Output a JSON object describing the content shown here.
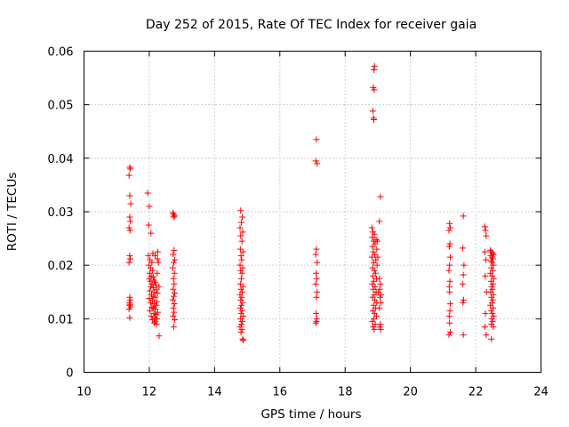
{
  "chart_data": {
    "type": "scatter",
    "title": "Day 252 of 2015, Rate Of TEC Index for receiver gaia",
    "xlabel": "GPS time / hours",
    "ylabel": "ROTI / TECUs",
    "xlim": [
      10,
      24
    ],
    "ylim": [
      0,
      0.06
    ],
    "xticks": [
      10,
      12,
      14,
      16,
      18,
      20,
      22,
      24
    ],
    "yticks": [
      0,
      0.01,
      0.02,
      0.03,
      0.04,
      0.05,
      0.06
    ],
    "xtick_labels": [
      "10",
      "12",
      "14",
      "16",
      "18",
      "20",
      "22",
      "24"
    ],
    "ytick_labels": [
      "0",
      "0.01",
      "0.02",
      "0.03",
      "0.04",
      "0.05",
      "0.06"
    ],
    "grid": true,
    "marker": "plus",
    "color": "#ff0000",
    "series": [
      {
        "name": "ROTI",
        "points": [
          [
            11.4,
            0.0383
          ],
          [
            11.42,
            0.038
          ],
          [
            11.38,
            0.0368
          ],
          [
            11.4,
            0.033
          ],
          [
            11.43,
            0.0315
          ],
          [
            11.4,
            0.029
          ],
          [
            11.42,
            0.0282
          ],
          [
            11.38,
            0.027
          ],
          [
            11.41,
            0.0265
          ],
          [
            11.4,
            0.0218
          ],
          [
            11.42,
            0.0212
          ],
          [
            11.38,
            0.0205
          ],
          [
            11.4,
            0.014
          ],
          [
            11.42,
            0.0135
          ],
          [
            11.39,
            0.013
          ],
          [
            11.41,
            0.0127
          ],
          [
            11.4,
            0.0125
          ],
          [
            11.43,
            0.0122
          ],
          [
            11.38,
            0.0118
          ],
          [
            11.4,
            0.0102
          ],
          [
            11.95,
            0.0335
          ],
          [
            12.0,
            0.031
          ],
          [
            11.98,
            0.0275
          ],
          [
            12.05,
            0.026
          ],
          [
            11.97,
            0.0218
          ],
          [
            12.02,
            0.021
          ],
          [
            12.08,
            0.0205
          ],
          [
            11.99,
            0.02
          ],
          [
            12.04,
            0.0195
          ],
          [
            12.1,
            0.019
          ],
          [
            12.01,
            0.0185
          ],
          [
            12.06,
            0.018
          ],
          [
            12.12,
            0.0178
          ],
          [
            12.0,
            0.0175
          ],
          [
            12.15,
            0.0172
          ],
          [
            12.03,
            0.017
          ],
          [
            12.18,
            0.0168
          ],
          [
            12.08,
            0.0165
          ],
          [
            12.2,
            0.0163
          ],
          [
            12.05,
            0.016
          ],
          [
            12.12,
            0.0158
          ],
          [
            12.22,
            0.0155
          ],
          [
            12.02,
            0.0152
          ],
          [
            12.16,
            0.015
          ],
          [
            12.25,
            0.0148
          ],
          [
            12.07,
            0.0145
          ],
          [
            12.13,
            0.0142
          ],
          [
            12.19,
            0.014
          ],
          [
            12.0,
            0.0138
          ],
          [
            12.1,
            0.0135
          ],
          [
            12.24,
            0.0132
          ],
          [
            12.04,
            0.013
          ],
          [
            12.15,
            0.0128
          ],
          [
            12.21,
            0.0125
          ],
          [
            12.08,
            0.0122
          ],
          [
            12.12,
            0.012
          ],
          [
            12.18,
            0.0118
          ],
          [
            12.02,
            0.0115
          ],
          [
            12.26,
            0.0112
          ],
          [
            12.14,
            0.011
          ],
          [
            12.2,
            0.0108
          ],
          [
            12.06,
            0.0105
          ],
          [
            12.17,
            0.0102
          ],
          [
            12.23,
            0.01
          ],
          [
            12.1,
            0.0098
          ],
          [
            12.19,
            0.0095
          ],
          [
            12.15,
            0.0092
          ],
          [
            12.22,
            0.009
          ],
          [
            12.25,
            0.0212
          ],
          [
            12.28,
            0.0205
          ],
          [
            12.26,
            0.0225
          ],
          [
            12.3,
            0.016
          ],
          [
            12.3,
            0.0068
          ],
          [
            12.18,
            0.0218
          ],
          [
            12.11,
            0.0222
          ],
          [
            12.24,
            0.0185
          ],
          [
            12.72,
            0.0298
          ],
          [
            12.75,
            0.0295
          ],
          [
            12.78,
            0.0292
          ],
          [
            12.74,
            0.029
          ],
          [
            12.76,
            0.0228
          ],
          [
            12.73,
            0.022
          ],
          [
            12.78,
            0.021
          ],
          [
            12.75,
            0.0205
          ],
          [
            12.72,
            0.0195
          ],
          [
            12.77,
            0.0185
          ],
          [
            12.74,
            0.0175
          ],
          [
            12.76,
            0.0165
          ],
          [
            12.73,
            0.0155
          ],
          [
            12.78,
            0.0148
          ],
          [
            12.75,
            0.0142
          ],
          [
            12.72,
            0.0135
          ],
          [
            12.77,
            0.0128
          ],
          [
            12.74,
            0.012
          ],
          [
            12.76,
            0.0112
          ],
          [
            12.73,
            0.0105
          ],
          [
            12.78,
            0.0098
          ],
          [
            12.75,
            0.0085
          ],
          [
            14.8,
            0.0302
          ],
          [
            14.85,
            0.029
          ],
          [
            14.82,
            0.028
          ],
          [
            14.78,
            0.027
          ],
          [
            14.86,
            0.0262
          ],
          [
            14.8,
            0.0255
          ],
          [
            14.84,
            0.0245
          ],
          [
            14.79,
            0.023
          ],
          [
            14.87,
            0.0225
          ],
          [
            14.81,
            0.0218
          ],
          [
            14.83,
            0.021
          ],
          [
            14.78,
            0.02
          ],
          [
            14.86,
            0.0195
          ],
          [
            14.8,
            0.019
          ],
          [
            14.84,
            0.0185
          ],
          [
            14.82,
            0.0175
          ],
          [
            14.79,
            0.0165
          ],
          [
            14.87,
            0.016
          ],
          [
            14.81,
            0.0155
          ],
          [
            14.85,
            0.015
          ],
          [
            14.78,
            0.0145
          ],
          [
            14.83,
            0.014
          ],
          [
            14.8,
            0.0135
          ],
          [
            14.86,
            0.013
          ],
          [
            14.82,
            0.0125
          ],
          [
            14.79,
            0.012
          ],
          [
            14.84,
            0.0115
          ],
          [
            14.81,
            0.011
          ],
          [
            14.87,
            0.0105
          ],
          [
            14.8,
            0.01
          ],
          [
            14.85,
            0.0095
          ],
          [
            14.82,
            0.009
          ],
          [
            14.78,
            0.0085
          ],
          [
            14.84,
            0.008
          ],
          [
            14.81,
            0.0075
          ],
          [
            14.86,
            0.0062
          ],
          [
            14.88,
            0.006
          ],
          [
            17.12,
            0.0435
          ],
          [
            17.1,
            0.0395
          ],
          [
            17.14,
            0.039
          ],
          [
            17.12,
            0.023
          ],
          [
            17.1,
            0.022
          ],
          [
            17.14,
            0.0205
          ],
          [
            17.11,
            0.0185
          ],
          [
            17.13,
            0.0175
          ],
          [
            17.1,
            0.0165
          ],
          [
            17.14,
            0.015
          ],
          [
            17.12,
            0.014
          ],
          [
            17.11,
            0.011
          ],
          [
            17.13,
            0.01
          ],
          [
            17.12,
            0.0095
          ],
          [
            17.1,
            0.0092
          ],
          [
            18.9,
            0.0572
          ],
          [
            18.88,
            0.0565
          ],
          [
            18.86,
            0.0532
          ],
          [
            18.89,
            0.0528
          ],
          [
            18.85,
            0.0488
          ],
          [
            18.87,
            0.0475
          ],
          [
            18.88,
            0.0472
          ],
          [
            19.08,
            0.0328
          ],
          [
            19.05,
            0.0282
          ],
          [
            18.82,
            0.027
          ],
          [
            18.85,
            0.0262
          ],
          [
            18.9,
            0.0258
          ],
          [
            18.83,
            0.0252
          ],
          [
            18.95,
            0.0248
          ],
          [
            18.88,
            0.0245
          ],
          [
            18.92,
            0.024
          ],
          [
            18.84,
            0.0235
          ],
          [
            18.97,
            0.023
          ],
          [
            18.86,
            0.0225
          ],
          [
            18.91,
            0.022
          ],
          [
            18.82,
            0.0215
          ],
          [
            18.94,
            0.021
          ],
          [
            18.87,
            0.0205
          ],
          [
            18.98,
            0.02
          ],
          [
            18.84,
            0.0195
          ],
          [
            18.9,
            0.019
          ],
          [
            18.93,
            0.0185
          ],
          [
            18.85,
            0.018
          ],
          [
            18.96,
            0.0175
          ],
          [
            18.88,
            0.017
          ],
          [
            18.83,
            0.0165
          ],
          [
            18.92,
            0.016
          ],
          [
            18.86,
            0.0155
          ],
          [
            18.95,
            0.015
          ],
          [
            18.89,
            0.0145
          ],
          [
            18.84,
            0.014
          ],
          [
            18.91,
            0.0135
          ],
          [
            18.97,
            0.013
          ],
          [
            18.87,
            0.0125
          ],
          [
            18.93,
            0.012
          ],
          [
            18.85,
            0.0115
          ],
          [
            18.9,
            0.011
          ],
          [
            18.96,
            0.0105
          ],
          [
            18.88,
            0.01
          ],
          [
            18.83,
            0.0095
          ],
          [
            18.92,
            0.009
          ],
          [
            18.86,
            0.0085
          ],
          [
            18.89,
            0.008
          ],
          [
            19.05,
            0.0175
          ],
          [
            19.08,
            0.0165
          ],
          [
            19.06,
            0.0155
          ],
          [
            19.1,
            0.0145
          ],
          [
            19.07,
            0.014
          ],
          [
            19.09,
            0.013
          ],
          [
            19.05,
            0.012
          ],
          [
            19.08,
            0.009
          ],
          [
            19.06,
            0.0085
          ],
          [
            19.09,
            0.008
          ],
          [
            18.99,
            0.0245
          ],
          [
            19.0,
            0.0215
          ],
          [
            19.02,
            0.015
          ],
          [
            21.2,
            0.0278
          ],
          [
            21.22,
            0.027
          ],
          [
            21.18,
            0.0265
          ],
          [
            21.21,
            0.024
          ],
          [
            21.19,
            0.0235
          ],
          [
            21.22,
            0.0215
          ],
          [
            21.2,
            0.02
          ],
          [
            21.18,
            0.019
          ],
          [
            21.21,
            0.017
          ],
          [
            21.19,
            0.016
          ],
          [
            21.2,
            0.015
          ],
          [
            21.22,
            0.0128
          ],
          [
            21.21,
            0.0115
          ],
          [
            21.19,
            0.0105
          ],
          [
            21.2,
            0.0092
          ],
          [
            21.22,
            0.0075
          ],
          [
            21.18,
            0.007
          ],
          [
            21.62,
            0.0292
          ],
          [
            21.6,
            0.0232
          ],
          [
            21.64,
            0.02
          ],
          [
            21.62,
            0.0182
          ],
          [
            21.6,
            0.0165
          ],
          [
            21.63,
            0.0135
          ],
          [
            21.61,
            0.013
          ],
          [
            21.62,
            0.007
          ],
          [
            22.28,
            0.0272
          ],
          [
            22.3,
            0.0265
          ],
          [
            22.32,
            0.0255
          ],
          [
            22.28,
            0.0225
          ],
          [
            22.31,
            0.021
          ],
          [
            22.29,
            0.018
          ],
          [
            22.33,
            0.015
          ],
          [
            22.3,
            0.011
          ],
          [
            22.28,
            0.0085
          ],
          [
            22.32,
            0.007
          ],
          [
            22.48,
            0.0062
          ],
          [
            22.45,
            0.0228
          ],
          [
            22.48,
            0.0225
          ],
          [
            22.52,
            0.0222
          ],
          [
            22.55,
            0.022
          ],
          [
            22.46,
            0.0218
          ],
          [
            22.5,
            0.0215
          ],
          [
            22.53,
            0.0212
          ],
          [
            22.47,
            0.0208
          ],
          [
            22.51,
            0.0205
          ],
          [
            22.54,
            0.02
          ],
          [
            22.48,
            0.0195
          ],
          [
            22.52,
            0.019
          ],
          [
            22.45,
            0.0185
          ],
          [
            22.5,
            0.018
          ],
          [
            22.55,
            0.0175
          ],
          [
            22.47,
            0.017
          ],
          [
            22.53,
            0.0165
          ],
          [
            22.49,
            0.016
          ],
          [
            22.51,
            0.0155
          ],
          [
            22.46,
            0.015
          ],
          [
            22.54,
            0.0145
          ],
          [
            22.48,
            0.014
          ],
          [
            22.52,
            0.0135
          ],
          [
            22.5,
            0.013
          ],
          [
            22.45,
            0.0125
          ],
          [
            22.53,
            0.012
          ],
          [
            22.47,
            0.0115
          ],
          [
            22.51,
            0.011
          ],
          [
            22.55,
            0.0105
          ],
          [
            22.49,
            0.01
          ],
          [
            22.52,
            0.0095
          ],
          [
            22.48,
            0.009
          ],
          [
            22.54,
            0.0085
          ]
        ]
      }
    ]
  }
}
